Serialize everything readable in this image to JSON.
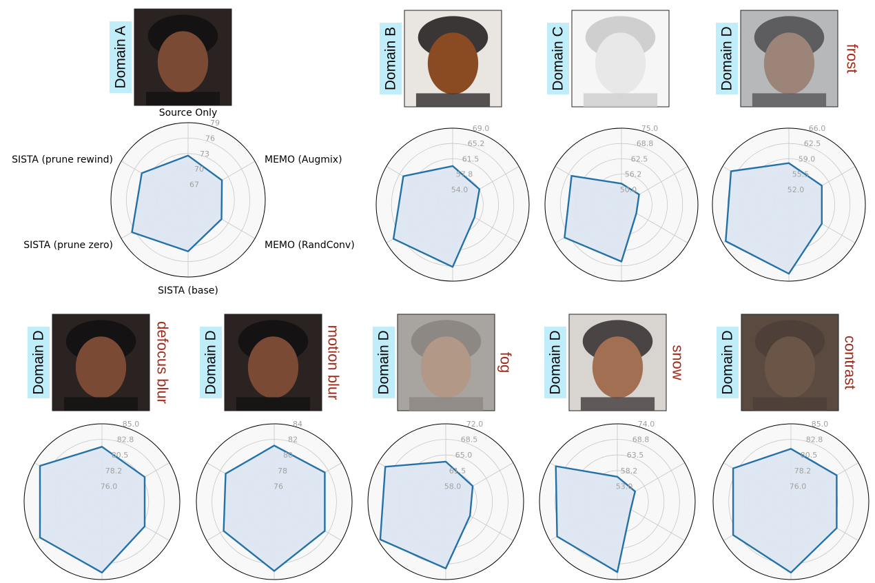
{
  "axes_labels": [
    "Source Only",
    "MEMO (Augmix)",
    "MEMO (RandConv)",
    "SISTA (base)",
    "SISTA (prune zero)",
    "SISTA (prune rewind)"
  ],
  "colors": {
    "series_line": "#2471a8",
    "series_fill": "#dde7f1",
    "polar_bg": "#f8f8f8",
    "grid": "#c7c7c7",
    "tick_text": "#a0a0a0",
    "domain_badge_bg": "#bfeefa",
    "corruption_text": "#a52a1a"
  },
  "domain_labels": [
    "Domain A",
    "Domain B",
    "Domain C",
    "Domain D",
    "Domain D",
    "Domain D",
    "Domain D",
    "Domain D",
    "Domain D"
  ],
  "corruption_labels": [
    "",
    "",
    "",
    "frost",
    "defocus blur",
    "motion blur",
    "fog",
    "snow",
    "contrast"
  ],
  "chart_data": [
    {
      "type": "radar",
      "ticks": [
        "67",
        "70",
        "73",
        "76",
        "79"
      ],
      "range": [
        64,
        79
      ],
      "values": [
        72.6,
        71.6,
        71.5,
        74.0,
        76.6,
        74.4
      ]
    },
    {
      "type": "radar",
      "ticks": [
        "54.0",
        "57.8",
        "61.5",
        "65.2",
        "69.0"
      ],
      "range": [
        50.2,
        69.0
      ],
      "values": [
        59.7,
        57.8,
        56.4,
        65.5,
        67.0,
        64.2
      ]
    },
    {
      "type": "radar",
      "ticks": [
        "50.0",
        "56.2",
        "62.5",
        "68.8",
        "75.0"
      ],
      "range": [
        43.8,
        75.0
      ],
      "values": [
        52.4,
        52.1,
        50.8,
        67.0,
        70.6,
        67.3
      ]
    },
    {
      "type": "radar",
      "ticks": [
        "52.0",
        "55.5",
        "59.0",
        "62.5",
        "66.0"
      ],
      "range": [
        48.5,
        66.0
      ],
      "values": [
        58.0,
        57.2,
        57.2,
        64.3,
        65.2,
        63.8
      ]
    },
    {
      "type": "radar",
      "ticks": [
        "76.0",
        "78.2",
        "80.5",
        "82.8",
        "85.0"
      ],
      "range": [
        73.8,
        85.0
      ],
      "values": [
        81.7,
        80.9,
        80.9,
        84.0,
        84.1,
        84.1
      ]
    },
    {
      "type": "radar",
      "ticks": [
        "76",
        "78",
        "80",
        "82",
        "84"
      ],
      "range": [
        74,
        84
      ],
      "values": [
        81.2,
        81.5,
        81.5,
        82.9,
        81.5,
        81.2
      ]
    },
    {
      "type": "radar",
      "ticks": [
        "58.0",
        "61.5",
        "65.0",
        "68.5",
        "72.0"
      ],
      "range": [
        54.5,
        72.0
      ],
      "values": [
        63.5,
        61.5,
        60.8,
        69.5,
        71.5,
        70.2
      ]
    },
    {
      "type": "radar",
      "ticks": [
        "53.0",
        "58.2",
        "63.5",
        "68.8",
        "74.0"
      ],
      "range": [
        47.8,
        74.0
      ],
      "values": [
        56.2,
        54.7,
        53.0,
        71.5,
        71.2,
        71.7
      ]
    },
    {
      "type": "radar",
      "ticks": [
        "76.0",
        "78.2",
        "80.5",
        "82.8",
        "85.0"
      ],
      "range": [
        73.8,
        85.0
      ],
      "values": [
        81.4,
        81.4,
        81.4,
        84.0,
        83.4,
        83.4
      ]
    }
  ]
}
